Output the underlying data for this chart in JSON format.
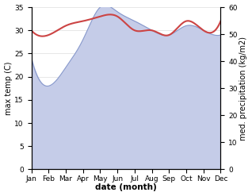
{
  "months": [
    "Jan",
    "Feb",
    "Mar",
    "Apr",
    "May",
    "Jun",
    "Jul",
    "Aug",
    "Sep",
    "Oct",
    "Nov",
    "Dec"
  ],
  "temp_max": [
    30.0,
    29.0,
    31.0,
    32.0,
    33.0,
    33.0,
    30.0,
    30.0,
    29.0,
    32.0,
    30.0,
    32.0
  ],
  "precip_left": [
    24.0,
    18.0,
    22.0,
    28.0,
    35.0,
    34.0,
    32.0,
    30.0,
    29.0,
    31.0,
    30.0,
    29.0
  ],
  "temp_color": "#cc4444",
  "precip_line_color": "#8899cc",
  "precip_fill_color": "#c5cce8",
  "ylim_left": [
    0,
    35
  ],
  "ylim_right": [
    0,
    60
  ],
  "yticks_left": [
    0,
    5,
    10,
    15,
    20,
    25,
    30,
    35
  ],
  "yticks_right": [
    0,
    10,
    20,
    30,
    40,
    50,
    60
  ],
  "ylabel_left": "max temp (C)",
  "ylabel_right": "med. precipitation (kg/m2)",
  "xlabel": "date (month)",
  "bg_color": "#ffffff",
  "grid_color": "#dddddd"
}
